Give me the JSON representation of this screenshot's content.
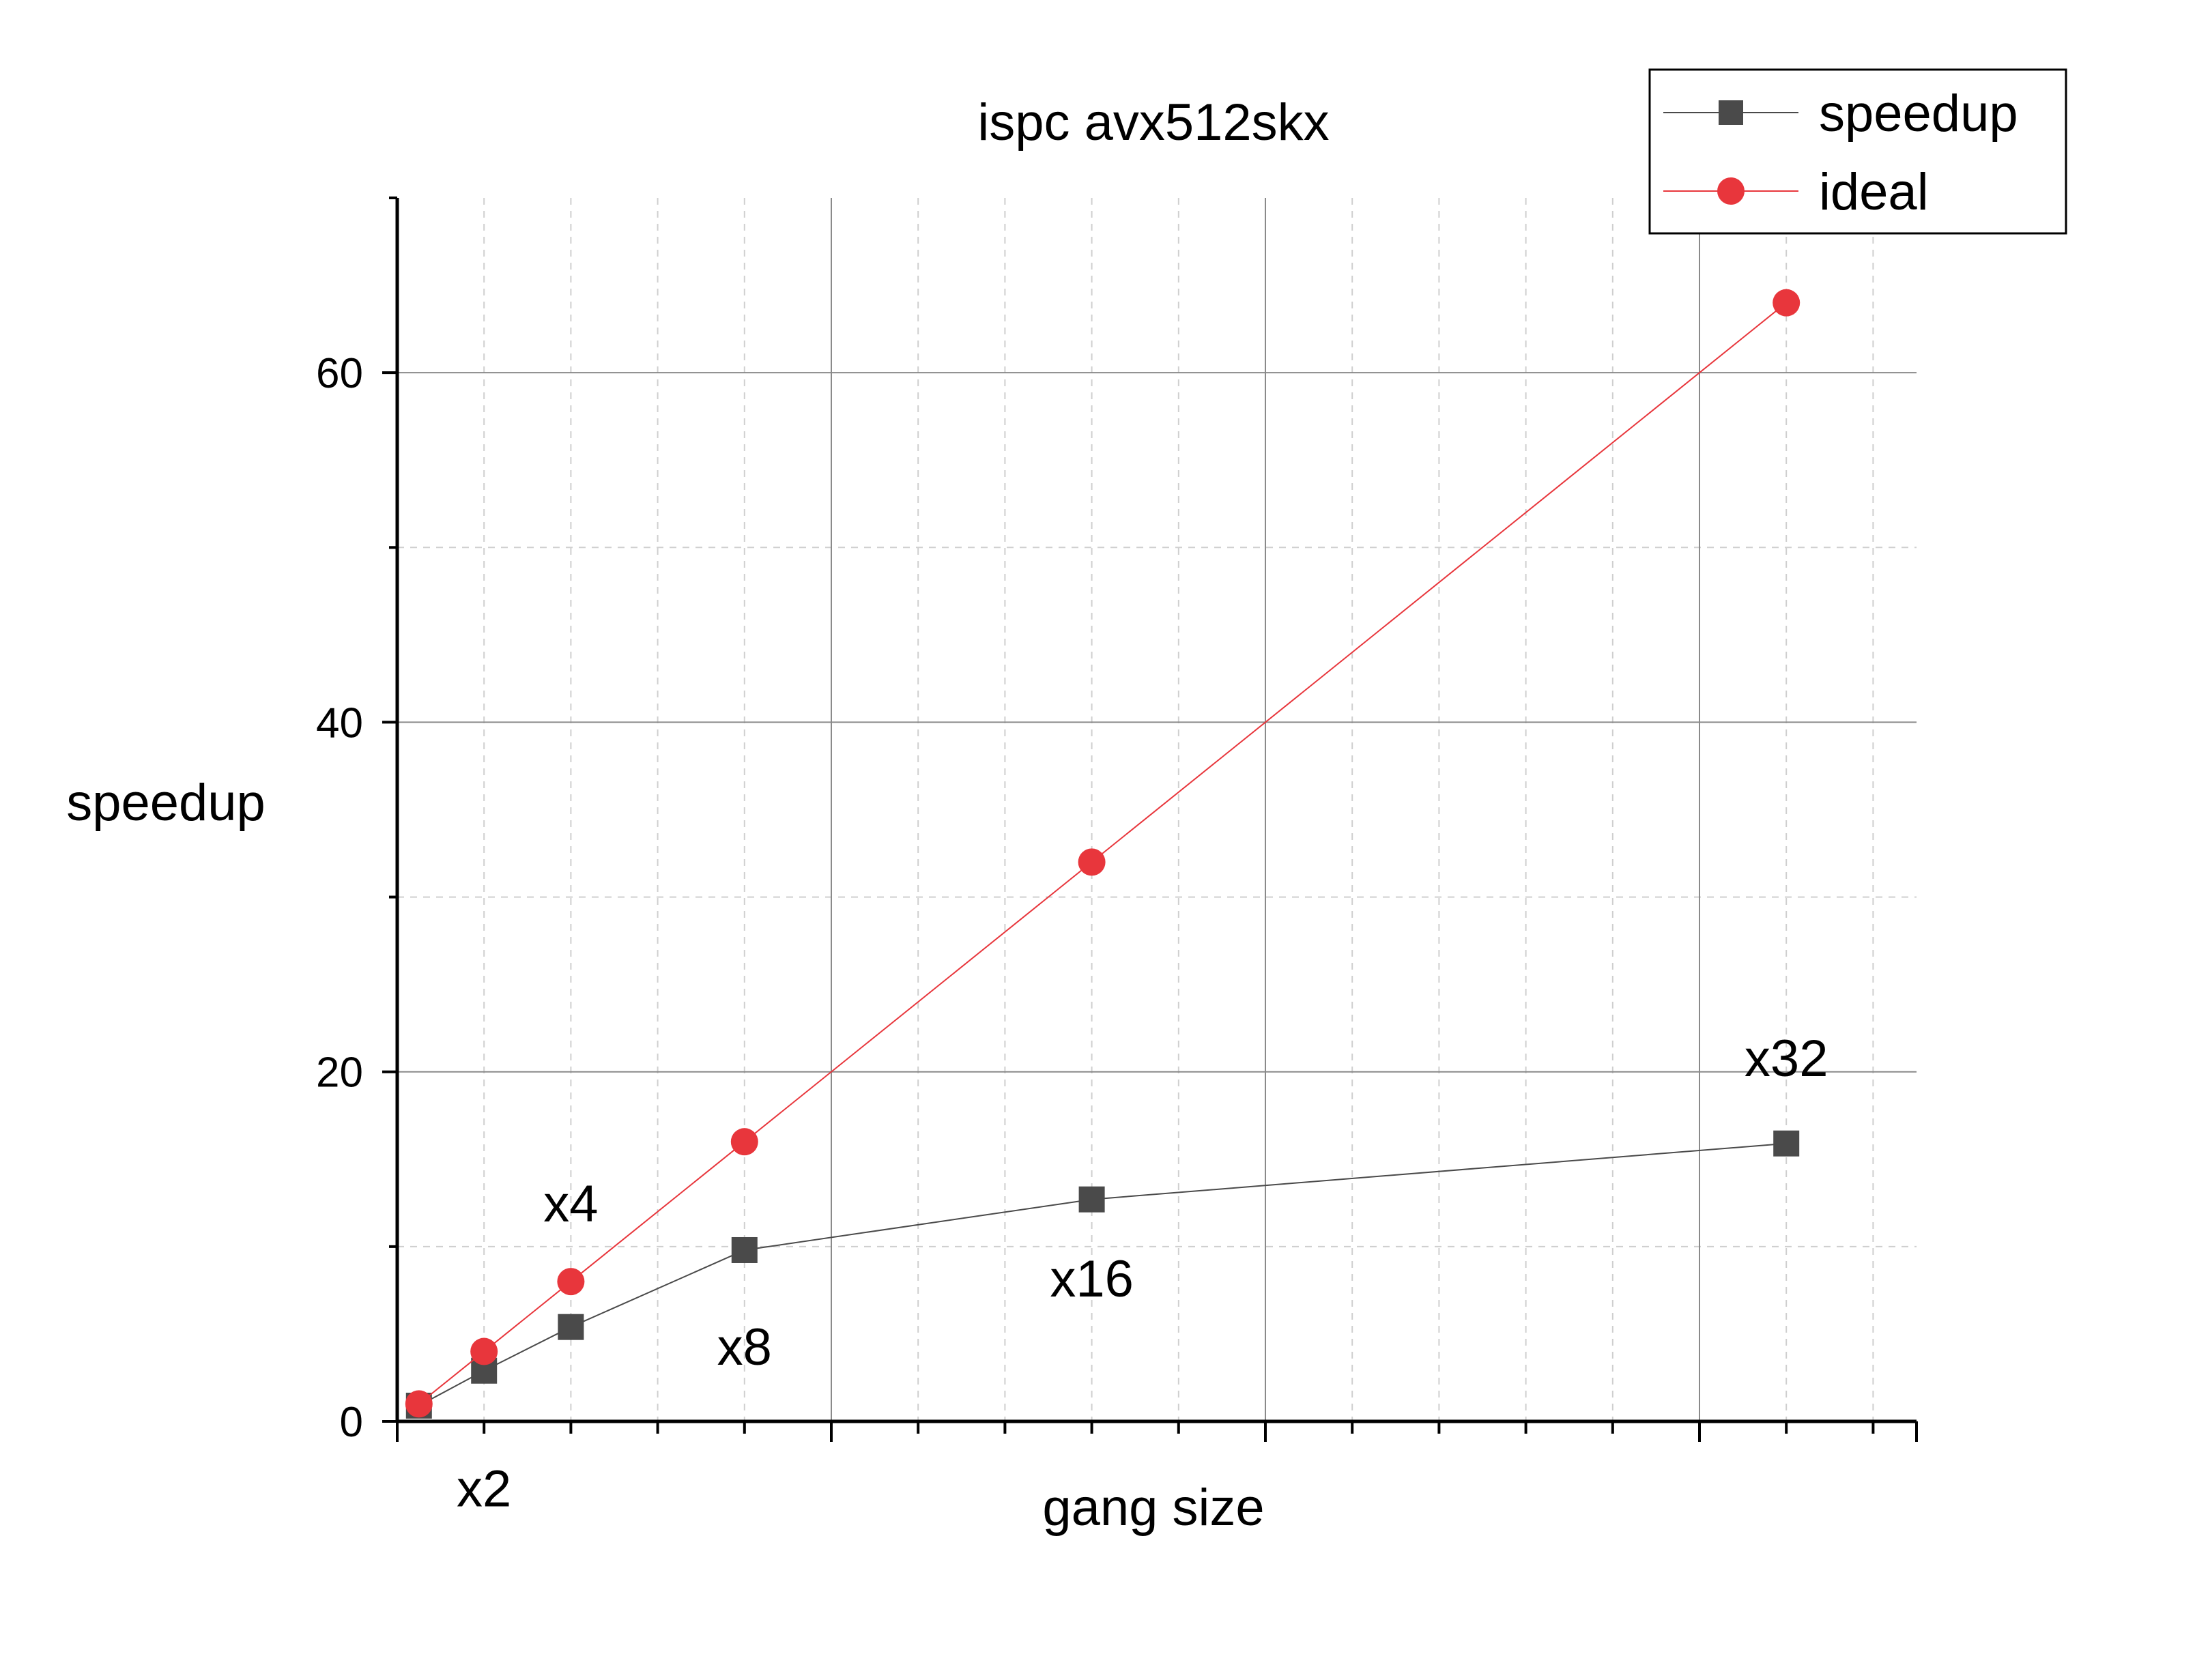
{
  "chart_data": {
    "type": "line",
    "title": "ispc avx512skx",
    "xlabel": "gang size",
    "ylabel": "speedup",
    "xlim": [
      0,
      35
    ],
    "ylim": [
      0,
      70
    ],
    "yticks": [
      0,
      20,
      40,
      60
    ],
    "grid": true,
    "legend_position": "top-right",
    "series": [
      {
        "name": "speedup",
        "color": "#4a4a4a",
        "marker": "square",
        "x": [
          0.5,
          2,
          4,
          8,
          16,
          32
        ],
        "values": [
          0.9,
          2.9,
          5.4,
          9.8,
          12.7,
          15.9
        ]
      },
      {
        "name": "ideal",
        "color": "#e8363c",
        "marker": "circle",
        "x": [
          0.5,
          2,
          4,
          8,
          16,
          32
        ],
        "values": [
          1,
          4,
          8,
          16,
          32,
          64
        ]
      }
    ],
    "annotations": [
      {
        "text": "x2",
        "x": 2,
        "y": -3.8
      },
      {
        "text": "x4",
        "x": 4,
        "y": 12.5
      },
      {
        "text": "x8",
        "x": 8,
        "y": 4.3
      },
      {
        "text": "x16",
        "x": 16,
        "y": 8.2
      },
      {
        "text": "x32",
        "x": 32,
        "y": 20.8
      }
    ]
  }
}
